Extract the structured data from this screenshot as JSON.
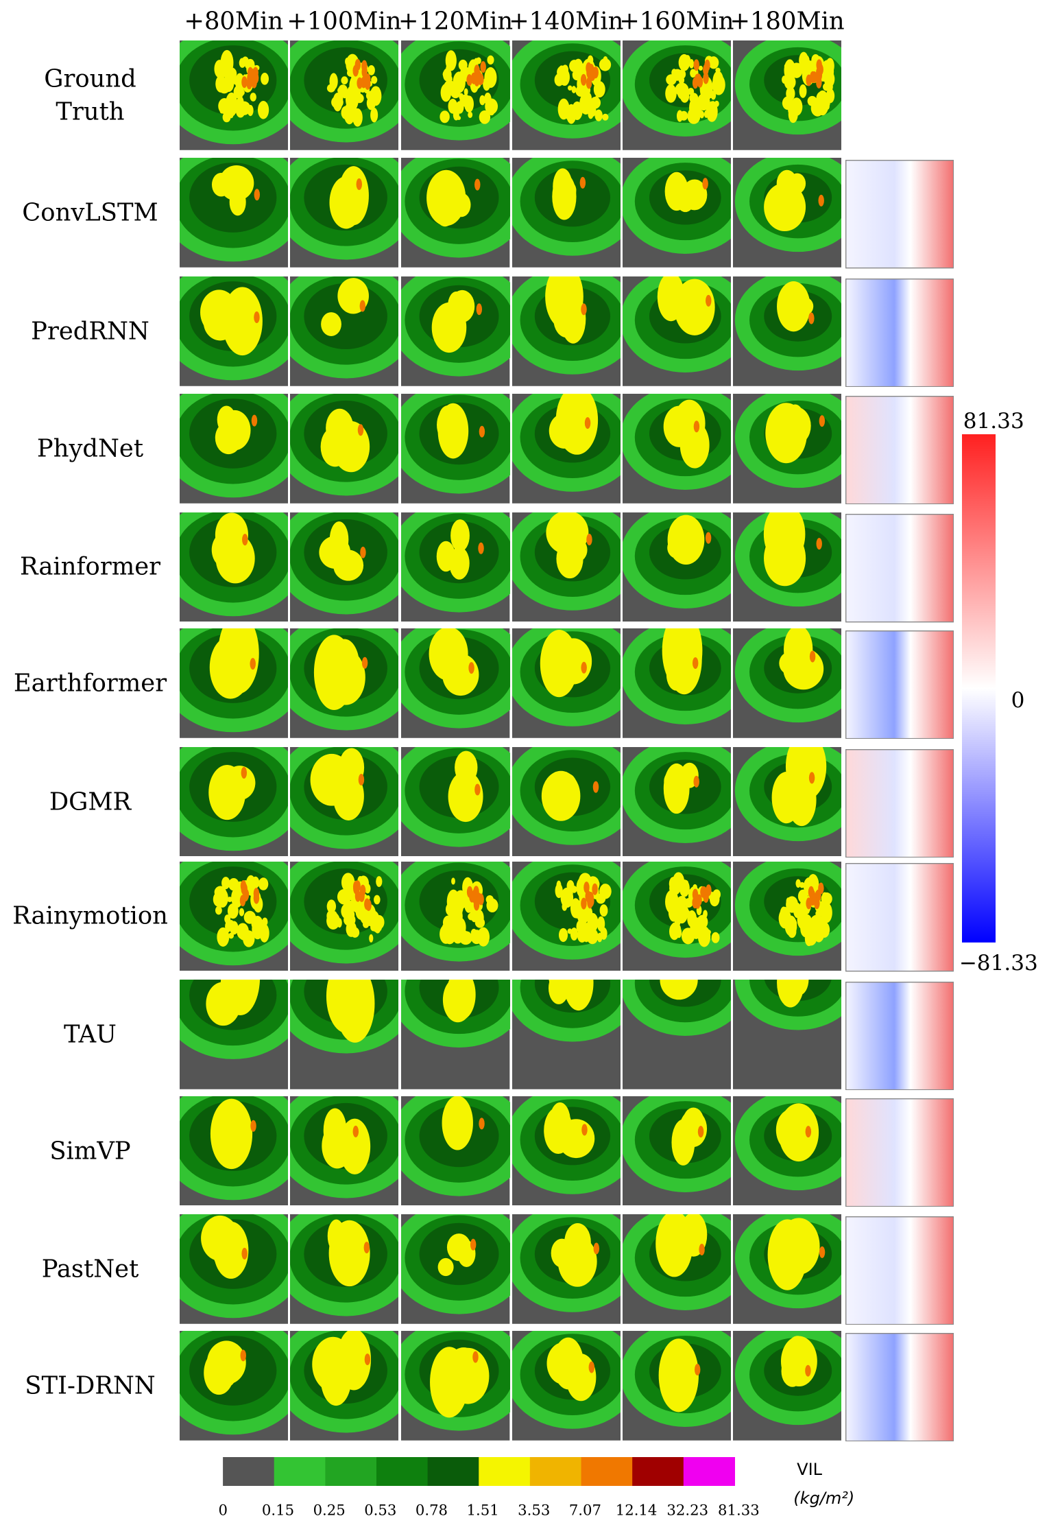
{
  "columns": [
    "+80Min",
    "+100Min",
    "+120Min",
    "+140Min",
    "+160Min",
    "+180Min"
  ],
  "rows": [
    "Ground Truth",
    "ConvLSTM",
    "PredRNN",
    "PhydNet",
    "Rainformer",
    "Earthformer",
    "DGMR",
    "Rainymotion",
    "TAU",
    "SimVP",
    "PastNet",
    "STI-DRNN"
  ],
  "diff_colorbar": {
    "max": "81.33",
    "mid": "0",
    "min": "−81.33"
  },
  "vil_colorbar": {
    "colors": [
      "#555555",
      "#33c433",
      "#22a522",
      "#0e800e",
      "#0a5c0a",
      "#f5f500",
      "#f0b400",
      "#f07800",
      "#a00000",
      "#f000f0"
    ],
    "ticks": [
      "0",
      "0.15",
      "0.25",
      "0.53",
      "0.78",
      "1.51",
      "3.53",
      "7.07",
      "12.14",
      "32.23",
      "81.33"
    ],
    "label": "VIL",
    "unit": "(kg/m²)"
  }
}
